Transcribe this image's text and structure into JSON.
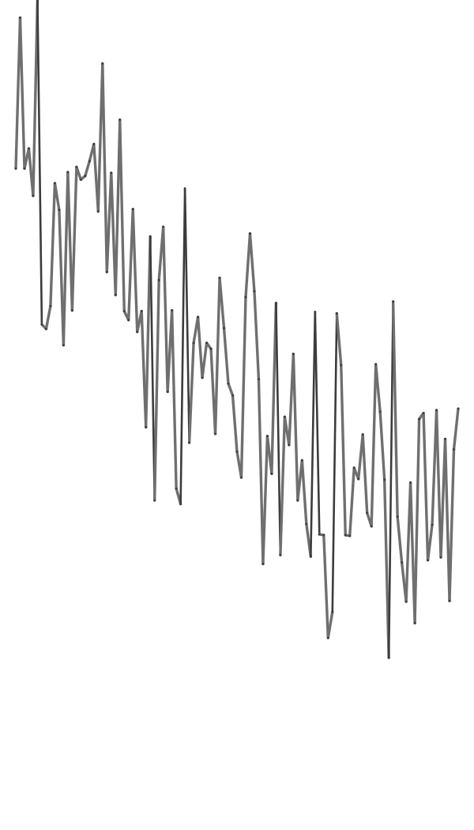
{
  "chart_data": {
    "type": "line",
    "title": "",
    "xlabel": "",
    "ylabel": "",
    "grid": false,
    "legend": "none",
    "colors": {
      "line": "#6f6f6f",
      "line_dark": "#3c3c3c"
    },
    "x": [
      0,
      1,
      2,
      3,
      4,
      5,
      6,
      7,
      8,
      9,
      10,
      11,
      12,
      13,
      14,
      15,
      16,
      17,
      18,
      19,
      20,
      21,
      22,
      23,
      24,
      25,
      26,
      27,
      28,
      29,
      30,
      31,
      32,
      33,
      34,
      35,
      36,
      37,
      38,
      39,
      40,
      41,
      42,
      43,
      44,
      45,
      46,
      47,
      48,
      49,
      50,
      51,
      52,
      53,
      54,
      55,
      56,
      57,
      58,
      59,
      60,
      61,
      62,
      63,
      64,
      65,
      66,
      67,
      68,
      69,
      70,
      71,
      72,
      73,
      74,
      75,
      76,
      77,
      78,
      79,
      80,
      81,
      82,
      83,
      84,
      85,
      86,
      87,
      88,
      89,
      90,
      91,
      92,
      93,
      94,
      95,
      96,
      97,
      98,
      99,
      100,
      101,
      102
    ],
    "xlim": [
      0,
      102
    ],
    "ylim": [
      0,
      1
    ],
    "series": [
      {
        "values": [
          0.772,
          0.976,
          0.772,
          0.799,
          0.735,
          1.0,
          0.561,
          0.555,
          0.586,
          0.752,
          0.716,
          0.533,
          0.767,
          0.58,
          0.774,
          0.757,
          0.762,
          0.782,
          0.805,
          0.714,
          0.914,
          0.632,
          0.766,
          0.601,
          0.838,
          0.579,
          0.567,
          0.717,
          0.551,
          0.579,
          0.422,
          0.68,
          0.323,
          0.621,
          0.693,
          0.47,
          0.58,
          0.339,
          0.318,
          0.745,
          0.401,
          0.536,
          0.571,
          0.489,
          0.536,
          0.528,
          0.413,
          0.624,
          0.556,
          0.481,
          0.465,
          0.389,
          0.354,
          0.598,
          0.684,
          0.606,
          0.487,
          0.237,
          0.41,
          0.359,
          0.59,
          0.249,
          0.436,
          0.398,
          0.521,
          0.323,
          0.377,
          0.291,
          0.247,
          0.578,
          0.277,
          0.276,
          0.137,
          0.172,
          0.576,
          0.506,
          0.276,
          0.275,
          0.367,
          0.352,
          0.412,
          0.306,
          0.288,
          0.507,
          0.443,
          0.351,
          0.11,
          0.592,
          0.301,
          0.239,
          0.186,
          0.347,
          0.157,
          0.433,
          0.441,
          0.242,
          0.29,
          0.445,
          0.246,
          0.406,
          0.187,
          0.392,
          0.447
        ]
      }
    ]
  }
}
